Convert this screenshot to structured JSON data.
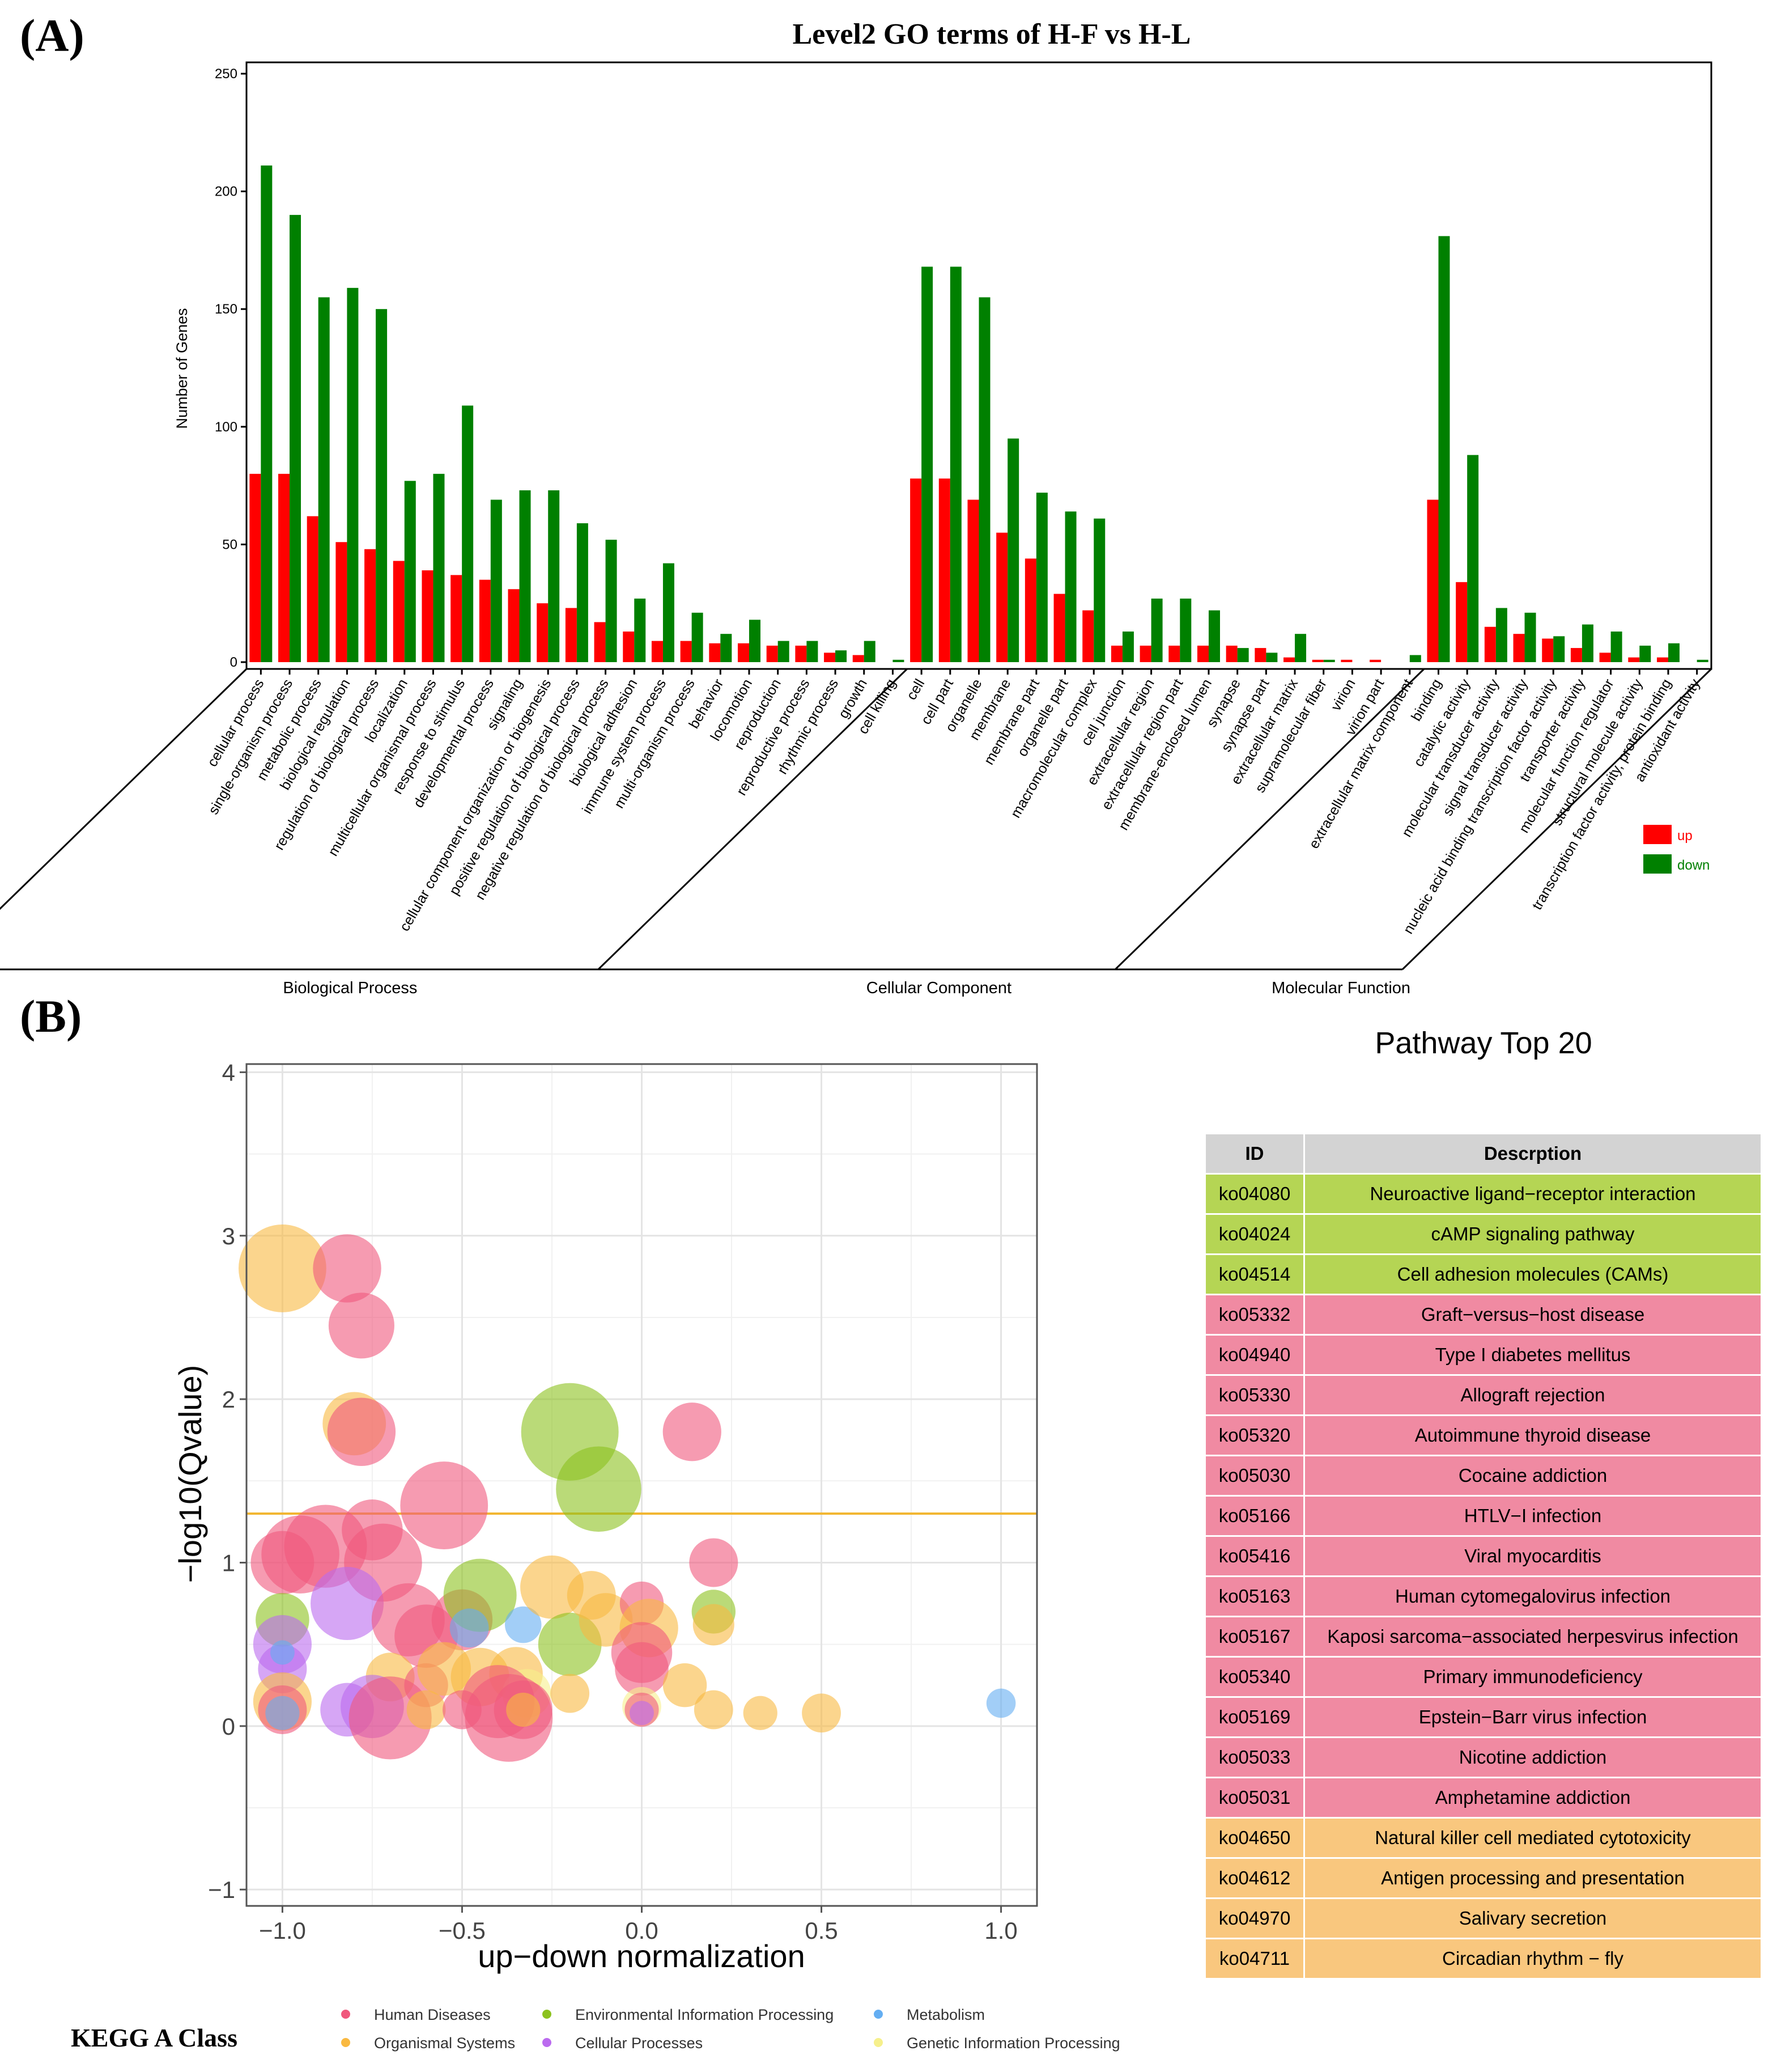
{
  "panel_a_label": "(A)",
  "panel_b_label": "(B)",
  "chart_data": [
    {
      "type": "bar",
      "title": "Level2 GO terms of H-F vs H-L",
      "ylabel": "Number of Genes",
      "xlabel": "",
      "ylim": [
        0,
        250
      ],
      "yticks": [
        "0",
        "50",
        "100",
        "150",
        "200",
        "250"
      ],
      "legend": [
        "up",
        "down"
      ],
      "colors": {
        "up": "#ff0000",
        "down": "#008000"
      },
      "groups": [
        {
          "name": "Biological Process",
          "start": 0,
          "end": 22
        },
        {
          "name": "Cellular Component",
          "start": 23,
          "end": 40
        },
        {
          "name": "Molecular Function",
          "start": 41,
          "end": 50
        }
      ],
      "categories": [
        "cellular process",
        "single-organism process",
        "metabolic process",
        "biological regulation",
        "regulation of biological process",
        "localization",
        "multicellular organismal process",
        "response to stimulus",
        "developmental process",
        "signaling",
        "cellular component organization or biogenesis",
        "positive regulation of biological process",
        "negative regulation of biological process",
        "biological adhesion",
        "immune system process",
        "multi-organism process",
        "behavior",
        "locomotion",
        "reproduction",
        "reproductive process",
        "rhythmic process",
        "growth",
        "cell killing",
        "cell",
        "cell part",
        "organelle",
        "membrane",
        "membrane part",
        "organelle part",
        "macromolecular complex",
        "cell junction",
        "extracellular region",
        "extracellular region part",
        "membrane-enclosed lumen",
        "synapse",
        "synapse part",
        "extracellular matrix",
        "supramolecular fiber",
        "virion",
        "virion part",
        "extracellular matrix component",
        "binding",
        "catalytic activity",
        "molecular transducer activity",
        "signal transducer activity",
        "nucleic acid binding transcription factor activity",
        "transporter activity",
        "molecular function regulator",
        "structural molecule activity",
        "transcription factor activity, protein binding",
        "antioxidant activity"
      ],
      "series": [
        {
          "name": "up",
          "values": [
            80,
            80,
            62,
            51,
            48,
            43,
            39,
            37,
            35,
            31,
            25,
            23,
            17,
            13,
            9,
            9,
            8,
            8,
            7,
            7,
            4,
            3,
            0,
            78,
            78,
            69,
            55,
            44,
            29,
            22,
            7,
            7,
            7,
            7,
            7,
            6,
            2,
            1,
            1,
            1,
            0,
            69,
            34,
            15,
            12,
            10,
            6,
            4,
            2,
            2,
            0
          ]
        },
        {
          "name": "down",
          "values": [
            211,
            190,
            155,
            159,
            150,
            77,
            80,
            109,
            69,
            73,
            73,
            59,
            52,
            27,
            42,
            21,
            12,
            18,
            9,
            9,
            5,
            9,
            1,
            168,
            168,
            155,
            95,
            72,
            64,
            61,
            13,
            27,
            27,
            22,
            6,
            4,
            12,
            1,
            0,
            0,
            3,
            181,
            88,
            23,
            21,
            11,
            16,
            13,
            7,
            8,
            1
          ]
        }
      ]
    },
    {
      "type": "scatter",
      "xlabel": "up−down normalization",
      "ylabel": "−log10(Qvalue)",
      "xlim": [
        -1.1,
        1.1
      ],
      "ylim": [
        -1.1,
        4.05
      ],
      "xticks": [
        -1.0,
        -0.5,
        0.0,
        0.5,
        1.0
      ],
      "xtick_labels": [
        "−1.0",
        "−0.5",
        "0.0",
        "0.5",
        "1.0"
      ],
      "yticks": [
        -1,
        0,
        1,
        2,
        3,
        4
      ],
      "ytick_labels": [
        "−1",
        "0",
        "1",
        "2",
        "3",
        "4"
      ],
      "threshold_y": 1.3,
      "legend_title": "KEGG A Class",
      "classes": [
        {
          "name": "Human Diseases",
          "color": "#f0587d"
        },
        {
          "name": "Environmental Information Processing",
          "color": "#8cc21e"
        },
        {
          "name": "Metabolism",
          "color": "#64aef2"
        },
        {
          "name": "Organismal Systems",
          "color": "#f9b941"
        },
        {
          "name": "Cellular Processes",
          "color": "#bb6bef"
        },
        {
          "name": "Genetic Information Processing",
          "color": "#f6f08c"
        }
      ],
      "points": [
        {
          "x": -1.0,
          "y": 2.8,
          "r": 36,
          "c": 3
        },
        {
          "x": -0.82,
          "y": 2.8,
          "r": 28,
          "c": 0
        },
        {
          "x": -0.78,
          "y": 2.45,
          "r": 27,
          "c": 0
        },
        {
          "x": -0.8,
          "y": 1.85,
          "r": 26,
          "c": 3
        },
        {
          "x": -0.78,
          "y": 1.8,
          "r": 28,
          "c": 0
        },
        {
          "x": -0.55,
          "y": 1.35,
          "r": 36,
          "c": 0
        },
        {
          "x": -0.2,
          "y": 1.8,
          "r": 40,
          "c": 1
        },
        {
          "x": -0.12,
          "y": 1.45,
          "r": 35,
          "c": 1
        },
        {
          "x": 0.14,
          "y": 1.8,
          "r": 24,
          "c": 0
        },
        {
          "x": -0.95,
          "y": 1.05,
          "r": 32,
          "c": 0
        },
        {
          "x": -1.0,
          "y": 1.0,
          "r": 26,
          "c": 0
        },
        {
          "x": -0.88,
          "y": 1.1,
          "r": 34,
          "c": 0
        },
        {
          "x": -0.75,
          "y": 1.2,
          "r": 25,
          "c": 0
        },
        {
          "x": -0.72,
          "y": 1.0,
          "r": 32,
          "c": 0
        },
        {
          "x": -0.82,
          "y": 0.75,
          "r": 30,
          "c": 4
        },
        {
          "x": 0.2,
          "y": 1.0,
          "r": 20,
          "c": 0
        },
        {
          "x": -1.0,
          "y": 0.65,
          "r": 22,
          "c": 1
        },
        {
          "x": -1.0,
          "y": 0.5,
          "r": 24,
          "c": 4
        },
        {
          "x": -1.0,
          "y": 0.35,
          "r": 20,
          "c": 4
        },
        {
          "x": -1.0,
          "y": 0.45,
          "r": 10,
          "c": 2
        },
        {
          "x": -0.65,
          "y": 0.65,
          "r": 30,
          "c": 0
        },
        {
          "x": -0.6,
          "y": 0.55,
          "r": 26,
          "c": 0
        },
        {
          "x": -0.5,
          "y": 0.65,
          "r": 25,
          "c": 0
        },
        {
          "x": -0.45,
          "y": 0.8,
          "r": 30,
          "c": 1
        },
        {
          "x": -0.48,
          "y": 0.6,
          "r": 16,
          "c": 2
        },
        {
          "x": -0.33,
          "y": 0.62,
          "r": 15,
          "c": 2
        },
        {
          "x": -0.25,
          "y": 0.85,
          "r": 26,
          "c": 3
        },
        {
          "x": -0.2,
          "y": 0.5,
          "r": 26,
          "c": 1
        },
        {
          "x": -0.14,
          "y": 0.8,
          "r": 20,
          "c": 3
        },
        {
          "x": -0.1,
          "y": 0.65,
          "r": 22,
          "c": 3
        },
        {
          "x": 0.0,
          "y": 0.75,
          "r": 18,
          "c": 0
        },
        {
          "x": 0.02,
          "y": 0.6,
          "r": 24,
          "c": 3
        },
        {
          "x": 0.0,
          "y": 0.45,
          "r": 25,
          "c": 0
        },
        {
          "x": 0.0,
          "y": 0.35,
          "r": 22,
          "c": 0
        },
        {
          "x": 0.2,
          "y": 0.7,
          "r": 18,
          "c": 1
        },
        {
          "x": 0.2,
          "y": 0.62,
          "r": 17,
          "c": 3
        },
        {
          "x": -0.7,
          "y": 0.3,
          "r": 20,
          "c": 3
        },
        {
          "x": -0.6,
          "y": 0.25,
          "r": 18,
          "c": 0
        },
        {
          "x": -0.55,
          "y": 0.35,
          "r": 22,
          "c": 3
        },
        {
          "x": -0.45,
          "y": 0.3,
          "r": 24,
          "c": 3
        },
        {
          "x": -0.35,
          "y": 0.32,
          "r": 22,
          "c": 3
        },
        {
          "x": -0.32,
          "y": 0.2,
          "r": 20,
          "c": 5
        },
        {
          "x": -0.2,
          "y": 0.2,
          "r": 16,
          "c": 3
        },
        {
          "x": 0.12,
          "y": 0.25,
          "r": 18,
          "c": 3
        },
        {
          "x": -1.0,
          "y": 0.15,
          "r": 24,
          "c": 3
        },
        {
          "x": -1.0,
          "y": 0.1,
          "r": 20,
          "c": 0
        },
        {
          "x": -1.0,
          "y": 0.08,
          "r": 14,
          "c": 2
        },
        {
          "x": -0.82,
          "y": 0.1,
          "r": 22,
          "c": 4
        },
        {
          "x": -0.75,
          "y": 0.12,
          "r": 26,
          "c": 4
        },
        {
          "x": -0.7,
          "y": 0.05,
          "r": 34,
          "c": 0
        },
        {
          "x": -0.6,
          "y": 0.1,
          "r": 16,
          "c": 3
        },
        {
          "x": -0.5,
          "y": 0.1,
          "r": 16,
          "c": 0
        },
        {
          "x": -0.4,
          "y": 0.15,
          "r": 30,
          "c": 0
        },
        {
          "x": -0.37,
          "y": 0.05,
          "r": 36,
          "c": 0
        },
        {
          "x": -0.33,
          "y": 0.1,
          "r": 24,
          "c": 0
        },
        {
          "x": -0.33,
          "y": 0.1,
          "r": 14,
          "c": 3
        },
        {
          "x": 0.0,
          "y": 0.12,
          "r": 16,
          "c": 5
        },
        {
          "x": 0.0,
          "y": 0.1,
          "r": 14,
          "c": 0
        },
        {
          "x": 0.0,
          "y": 0.08,
          "r": 10,
          "c": 4
        },
        {
          "x": 0.2,
          "y": 0.1,
          "r": 16,
          "c": 3
        },
        {
          "x": 0.33,
          "y": 0.08,
          "r": 14,
          "c": 3
        },
        {
          "x": 0.5,
          "y": 0.08,
          "r": 16,
          "c": 3
        },
        {
          "x": 1.0,
          "y": 0.14,
          "r": 12,
          "c": 2
        }
      ]
    }
  ],
  "pathway_table": {
    "title": "Pathway Top 20",
    "header_id": "ID",
    "header_desc": "Descrption",
    "rows": [
      {
        "id": "ko04080",
        "desc": "Neuroactive ligand−receptor interaction",
        "cls": "env"
      },
      {
        "id": "ko04024",
        "desc": "cAMP signaling pathway",
        "cls": "env"
      },
      {
        "id": "ko04514",
        "desc": "Cell adhesion molecules (CAMs)",
        "cls": "env"
      },
      {
        "id": "ko05332",
        "desc": "Graft−versus−host disease",
        "cls": "hd"
      },
      {
        "id": "ko04940",
        "desc": "Type I diabetes mellitus",
        "cls": "hd"
      },
      {
        "id": "ko05330",
        "desc": "Allograft rejection",
        "cls": "hd"
      },
      {
        "id": "ko05320",
        "desc": "Autoimmune thyroid disease",
        "cls": "hd"
      },
      {
        "id": "ko05030",
        "desc": "Cocaine addiction",
        "cls": "hd"
      },
      {
        "id": "ko05166",
        "desc": "HTLV−I infection",
        "cls": "hd"
      },
      {
        "id": "ko05416",
        "desc": "Viral myocarditis",
        "cls": "hd"
      },
      {
        "id": "ko05163",
        "desc": "Human cytomegalovirus infection",
        "cls": "hd"
      },
      {
        "id": "ko05167",
        "desc": "Kaposi sarcoma−associated herpesvirus infection",
        "cls": "hd"
      },
      {
        "id": "ko05340",
        "desc": "Primary immunodeficiency",
        "cls": "hd"
      },
      {
        "id": "ko05169",
        "desc": "Epstein−Barr virus infection",
        "cls": "hd"
      },
      {
        "id": "ko05033",
        "desc": "Nicotine addiction",
        "cls": "hd"
      },
      {
        "id": "ko05031",
        "desc": "Amphetamine addiction",
        "cls": "hd"
      },
      {
        "id": "ko04650",
        "desc": "Natural killer cell mediated cytotoxicity",
        "cls": "os"
      },
      {
        "id": "ko04612",
        "desc": "Antigen processing and presentation",
        "cls": "os"
      },
      {
        "id": "ko04970",
        "desc": "Salivary secretion",
        "cls": "os"
      },
      {
        "id": "ko04711",
        "desc": "Circadian rhythm − fly",
        "cls": "os"
      }
    ]
  }
}
